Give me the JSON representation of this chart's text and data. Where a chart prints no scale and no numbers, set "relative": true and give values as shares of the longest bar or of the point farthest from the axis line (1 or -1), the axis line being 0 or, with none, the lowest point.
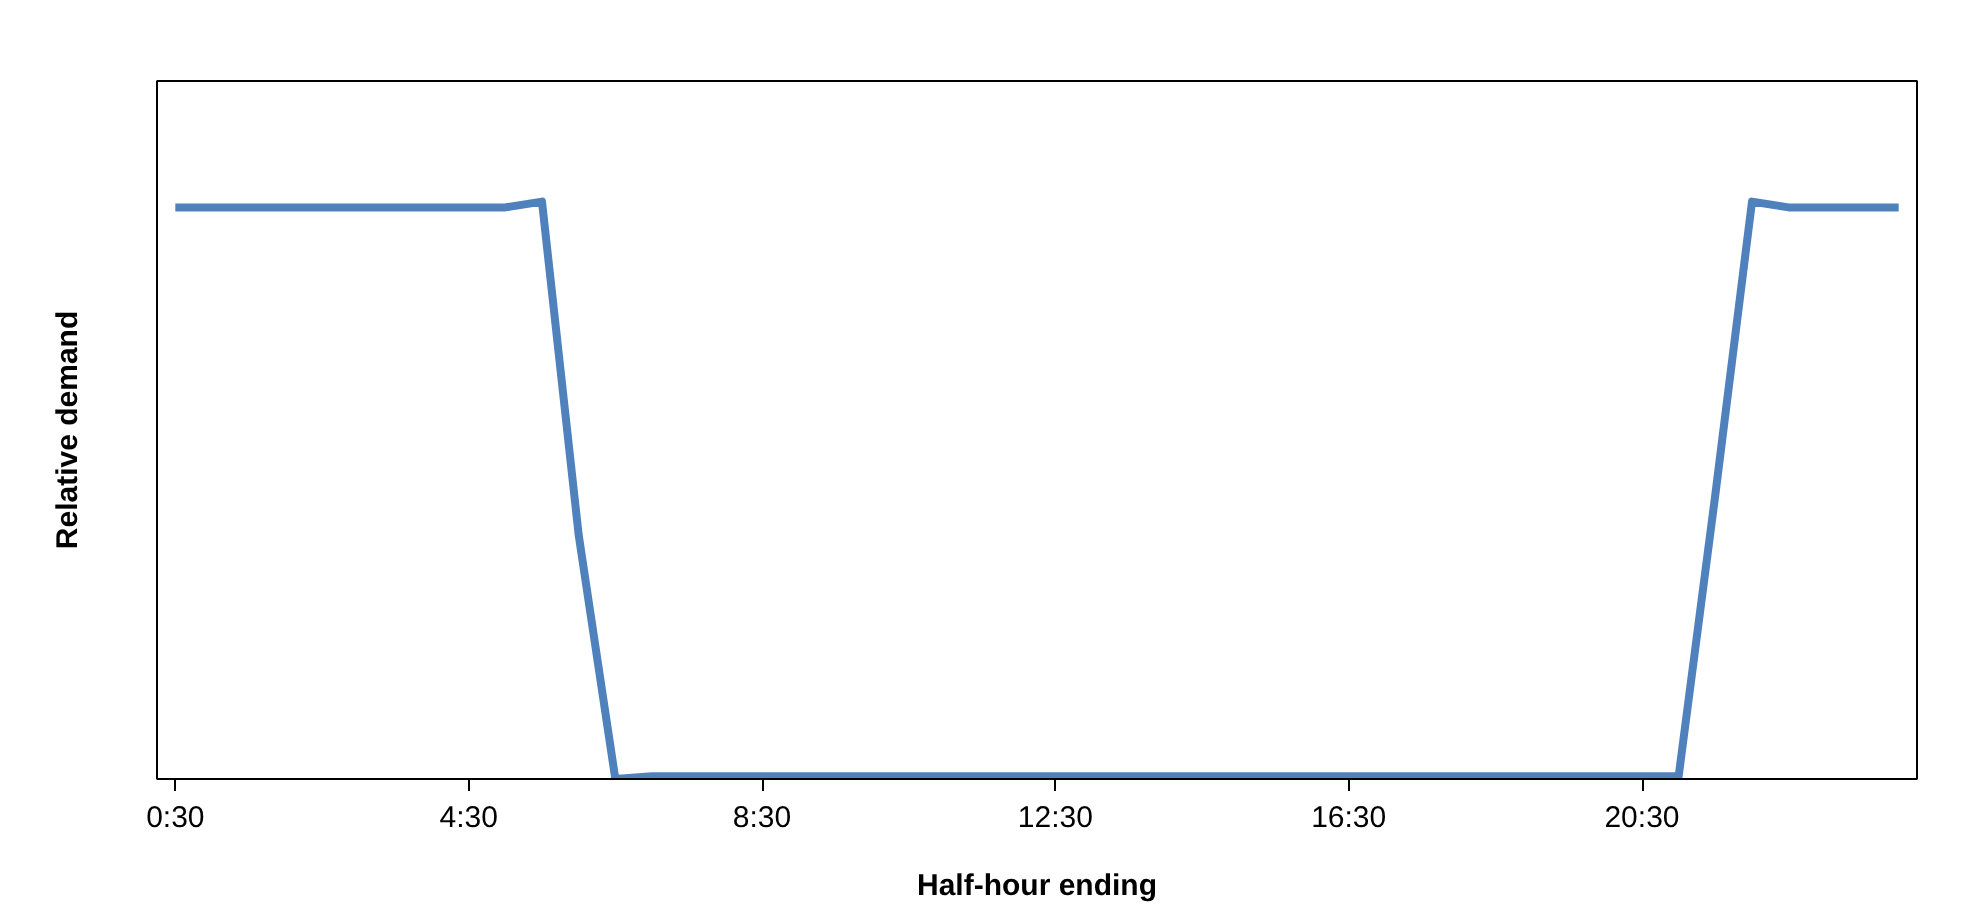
{
  "chart_data": {
    "type": "line",
    "xlabel": "Half-hour ending",
    "ylabel": "Relative demand",
    "relative": true,
    "x": [
      0.5,
      1.0,
      1.5,
      2.0,
      2.5,
      3.0,
      3.5,
      4.0,
      4.5,
      5.0,
      5.5,
      6.0,
      6.5,
      7.0,
      7.5,
      8.0,
      8.5,
      9.0,
      9.5,
      10.0,
      10.5,
      11.0,
      11.5,
      12.0,
      12.5,
      13.0,
      13.5,
      14.0,
      14.5,
      15.0,
      15.5,
      16.0,
      16.5,
      17.0,
      17.5,
      18.0,
      18.5,
      19.0,
      19.5,
      20.0,
      20.5,
      21.0,
      21.5,
      22.0,
      22.5,
      23.0,
      23.5,
      24.0
    ],
    "series": [
      {
        "color": "#4f81bd",
        "values": [
          0.99,
          0.99,
          0.99,
          0.99,
          0.99,
          0.99,
          0.99,
          0.99,
          0.99,
          0.99,
          1.0,
          0.42,
          -0.005,
          0,
          0,
          0,
          0,
          0,
          0,
          0,
          0,
          0,
          0,
          0,
          0,
          0,
          0,
          0,
          0,
          0,
          0,
          0,
          0,
          0,
          0,
          0,
          0,
          0,
          0,
          0,
          0,
          0,
          0.49,
          1.0,
          0.99,
          0.99,
          0.99,
          0.99
        ]
      }
    ],
    "xlim": [
      0.25,
      24.25
    ],
    "xticks": [
      {
        "value": 0.5,
        "label": "0:30"
      },
      {
        "value": 4.5,
        "label": "4:30"
      },
      {
        "value": 8.5,
        "label": "8:30"
      },
      {
        "value": 12.5,
        "label": "12:30"
      },
      {
        "value": 16.5,
        "label": "16:30"
      },
      {
        "value": 20.5,
        "label": "20:30"
      }
    ],
    "line_style": "solid",
    "marker": "none",
    "grid": false
  }
}
